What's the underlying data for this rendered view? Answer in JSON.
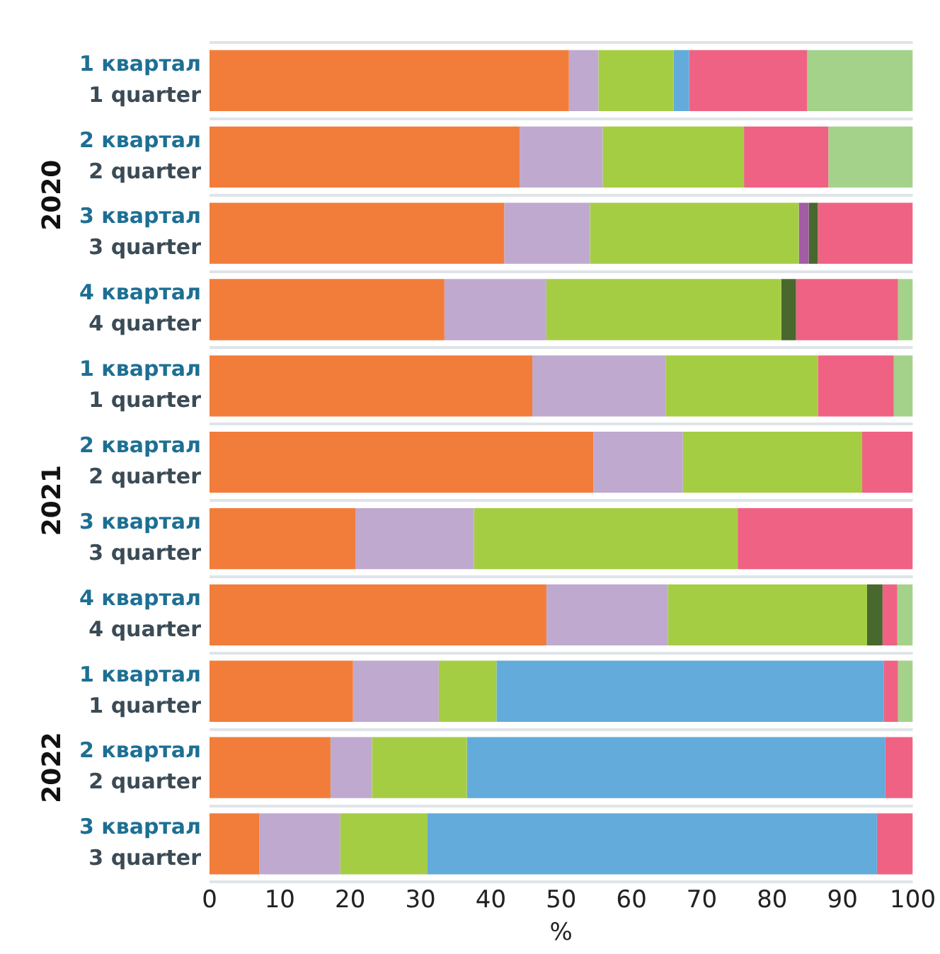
{
  "chart_data": {
    "type": "bar",
    "orientation": "horizontal",
    "stacked": true,
    "grid": "y",
    "legend": false,
    "xlabel": "%",
    "xlim": [
      0,
      100
    ],
    "xticks": [
      0,
      10,
      20,
      30,
      40,
      50,
      60,
      70,
      80,
      90,
      100
    ],
    "categories": [
      "1 квартал\n1 quarter",
      "2 квартал\n2 quarter",
      "3 квартал\n3 quarter",
      "4 квартал\n4 quarter",
      "1 квартал\n1 quarter",
      "2 квартал\n2 quarter",
      "3 квартал\n3 quarter",
      "4 квартал\n4 quarter",
      "1 квартал\n1 quarter",
      "2 квартал\n2 quarter",
      "3 квартал\n3 quarter"
    ],
    "annotations": [
      "2020",
      "2021",
      "2022"
    ],
    "series": [
      {
        "color": "#f27d3a",
        "values": [
          51.1,
          44.1,
          41.9,
          33.4,
          45.9,
          54.6,
          20.8,
          47.9,
          20.4,
          17.2,
          7.1
        ]
      },
      {
        "color": "#bfa9cf",
        "values": [
          4.2,
          11.8,
          12.2,
          14.5,
          19.0,
          12.7,
          16.8,
          17.3,
          12.2,
          5.9,
          11.5
        ]
      },
      {
        "color": "#a5cd44",
        "values": [
          10.7,
          20.1,
          29.7,
          33.4,
          21.6,
          25.5,
          37.5,
          28.3,
          8.2,
          13.5,
          12.4
        ]
      },
      {
        "color": "#62abdb",
        "values": [
          2.2,
          null,
          null,
          null,
          null,
          null,
          null,
          null,
          55.1,
          59.5,
          63.9
        ]
      },
      {
        "color": "#a35ba3",
        "values": [
          null,
          null,
          1.4,
          null,
          null,
          null,
          null,
          null,
          null,
          null,
          null
        ]
      },
      {
        "color": "#48682e",
        "values": [
          null,
          null,
          1.3,
          2.1,
          null,
          null,
          null,
          2.2,
          null,
          null,
          null
        ]
      },
      {
        "color": "#f06283",
        "values": [
          16.8,
          12.0,
          13.5,
          14.5,
          10.8,
          7.2,
          24.9,
          2.1,
          2.0,
          3.9,
          5.1
        ]
      },
      {
        "color": "#a4d28a",
        "values": [
          15.0,
          12.0,
          null,
          2.1,
          2.7,
          null,
          null,
          2.2,
          2.1,
          null,
          null
        ]
      }
    ]
  }
}
